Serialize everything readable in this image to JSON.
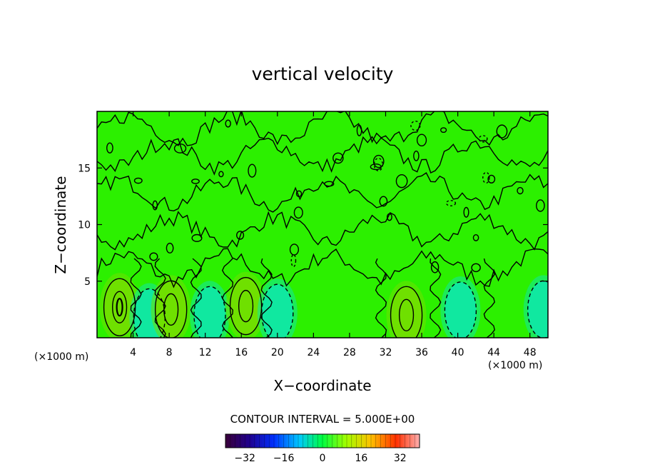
{
  "chart_data": {
    "type": "heatmap",
    "title": "vertical velocity",
    "xlabel": "X−coordinate",
    "ylabel": "Z−coordinate",
    "x_unit": "(×1000 m)",
    "x_unit_right": "(×1000 m)",
    "x_ticks": [
      "4",
      "8",
      "12",
      "16",
      "20",
      "24",
      "28",
      "32",
      "36",
      "40",
      "44",
      "48"
    ],
    "x_tick_values": [
      4,
      8,
      12,
      16,
      20,
      24,
      28,
      32,
      36,
      40,
      44,
      48
    ],
    "y_ticks": [
      "5",
      "10",
      "15"
    ],
    "y_tick_values": [
      5,
      10,
      15
    ],
    "xlim": [
      0,
      50
    ],
    "ylim": [
      0,
      20
    ],
    "contour_interval_label": "CONTOUR INTERVAL = 5.000E+00",
    "contour_interval": 5.0,
    "colorbar": {
      "ticks": [
        "−32",
        "−16",
        "0",
        "16",
        "32"
      ],
      "tick_values": [
        -32,
        -16,
        0,
        16,
        32
      ],
      "range": [
        -40,
        40
      ]
    },
    "features": [
      {
        "kind": "updraft",
        "x": 2.5,
        "z": 2.7,
        "peak": 10
      },
      {
        "kind": "downdraft",
        "x": 5.8,
        "z": 1.8,
        "peak": -5
      },
      {
        "kind": "updraft",
        "x": 8.2,
        "z": 2.5,
        "peak": 8
      },
      {
        "kind": "downdraft",
        "x": 12.5,
        "z": 2.0,
        "peak": -4
      },
      {
        "kind": "updraft",
        "x": 16.5,
        "z": 2.8,
        "peak": 8
      },
      {
        "kind": "downdraft",
        "x": 20.0,
        "z": 2.2,
        "peak": -4
      },
      {
        "kind": "updraft",
        "x": 34.3,
        "z": 2.0,
        "peak": 8
      },
      {
        "kind": "downdraft",
        "x": 40.3,
        "z": 2.4,
        "peak": -6
      },
      {
        "kind": "downdraft",
        "x": 49.5,
        "z": 2.5,
        "peak": -5
      }
    ]
  },
  "colors": {
    "field_base": "#2cf000",
    "updraft": "#6fe000",
    "downdraft": "#10e8a0",
    "contour": "#000000"
  }
}
